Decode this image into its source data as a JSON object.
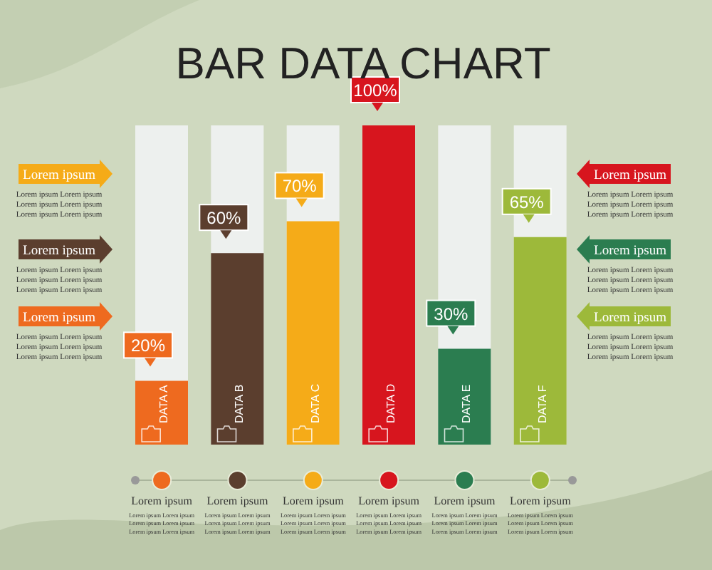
{
  "chart_data": {
    "type": "bar",
    "title": "BAR DATA CHART",
    "categories": [
      "DATA A",
      "DATA B",
      "DATA C",
      "DATA D",
      "DATA E",
      "DATA F"
    ],
    "values": [
      20,
      60,
      70,
      100,
      30,
      65
    ],
    "colors": [
      "#ee6a1f",
      "#5b3e2e",
      "#f5ab18",
      "#d7151e",
      "#2b7d50",
      "#9db93a"
    ],
    "value_labels": [
      "20%",
      "60%",
      "70%",
      "100%",
      "30%",
      "65%"
    ],
    "ylim": [
      0,
      100
    ],
    "tick_labels": false,
    "grid": false,
    "legend": false,
    "annotations": [
      "Lorem ipsum",
      "Lorem ipsum Lorem ipsum\nLorem ipsum Lorem ipsum\nLorem ipsum Lorem ipsum",
      "Lorem ipsum",
      "Lorem ipsum Lorem ipsum\nLorem ipsum Lorem ipsum\nLorem ipsum Lorem ipsum",
      "Lorem ipsum",
      "Lorem ipsum Lorem ipsum\nLorem ipsum Lorem ipsum\nLorem ipsum Lorem ipsum",
      "Lorem ipsum",
      "Lorem ipsum Lorem ipsum\nLorem ipsum Lorem ipsum\nLorem ipsum Lorem ipsum",
      "Lorem ipsum",
      "Lorem ipsum Lorem ipsum\nLorem ipsum Lorem ipsum\nLorem ipsum Lorem ipsum",
      "Lorem ipsum",
      "Lorem ipsum Lorem ipsum\nLorem ipsum Lorem ipsum\nLorem ipsum Lorem ipsum",
      "Lorem ipsum",
      "Lorem ipsum Lorem ipsum\nLorem ipsum Lorem ipsum\nLorem ipsum Lorem ipsum",
      "Lorem ipsum",
      "Lorem ipsum Lorem ipsum\nLorem ipsum Lorem ipsum\nLorem ipsum Lorem ipsum",
      "Lorem ipsum",
      "Lorem ipsum Lorem ipsum\nLorem ipsum Lorem ipsum\nLorem ipsum Lorem ipsum",
      "Lorem ipsum",
      "Lorem ipsum Lorem ipsum\nLorem ipsum Lorem ipsum\nLorem ipsum Lorem ipsum",
      "Lorem ipsum",
      "Lorem ipsum Lorem ipsum\nLorem ipsum Lorem ipsum\nLorem ipsum Lorem ipsum",
      "Lorem ipsum",
      "Lorem ipsum Lorem ipsum\nLorem ipsum Lorem ipsum\nLorem ipsum Lorem ipsum"
    ]
  }
}
